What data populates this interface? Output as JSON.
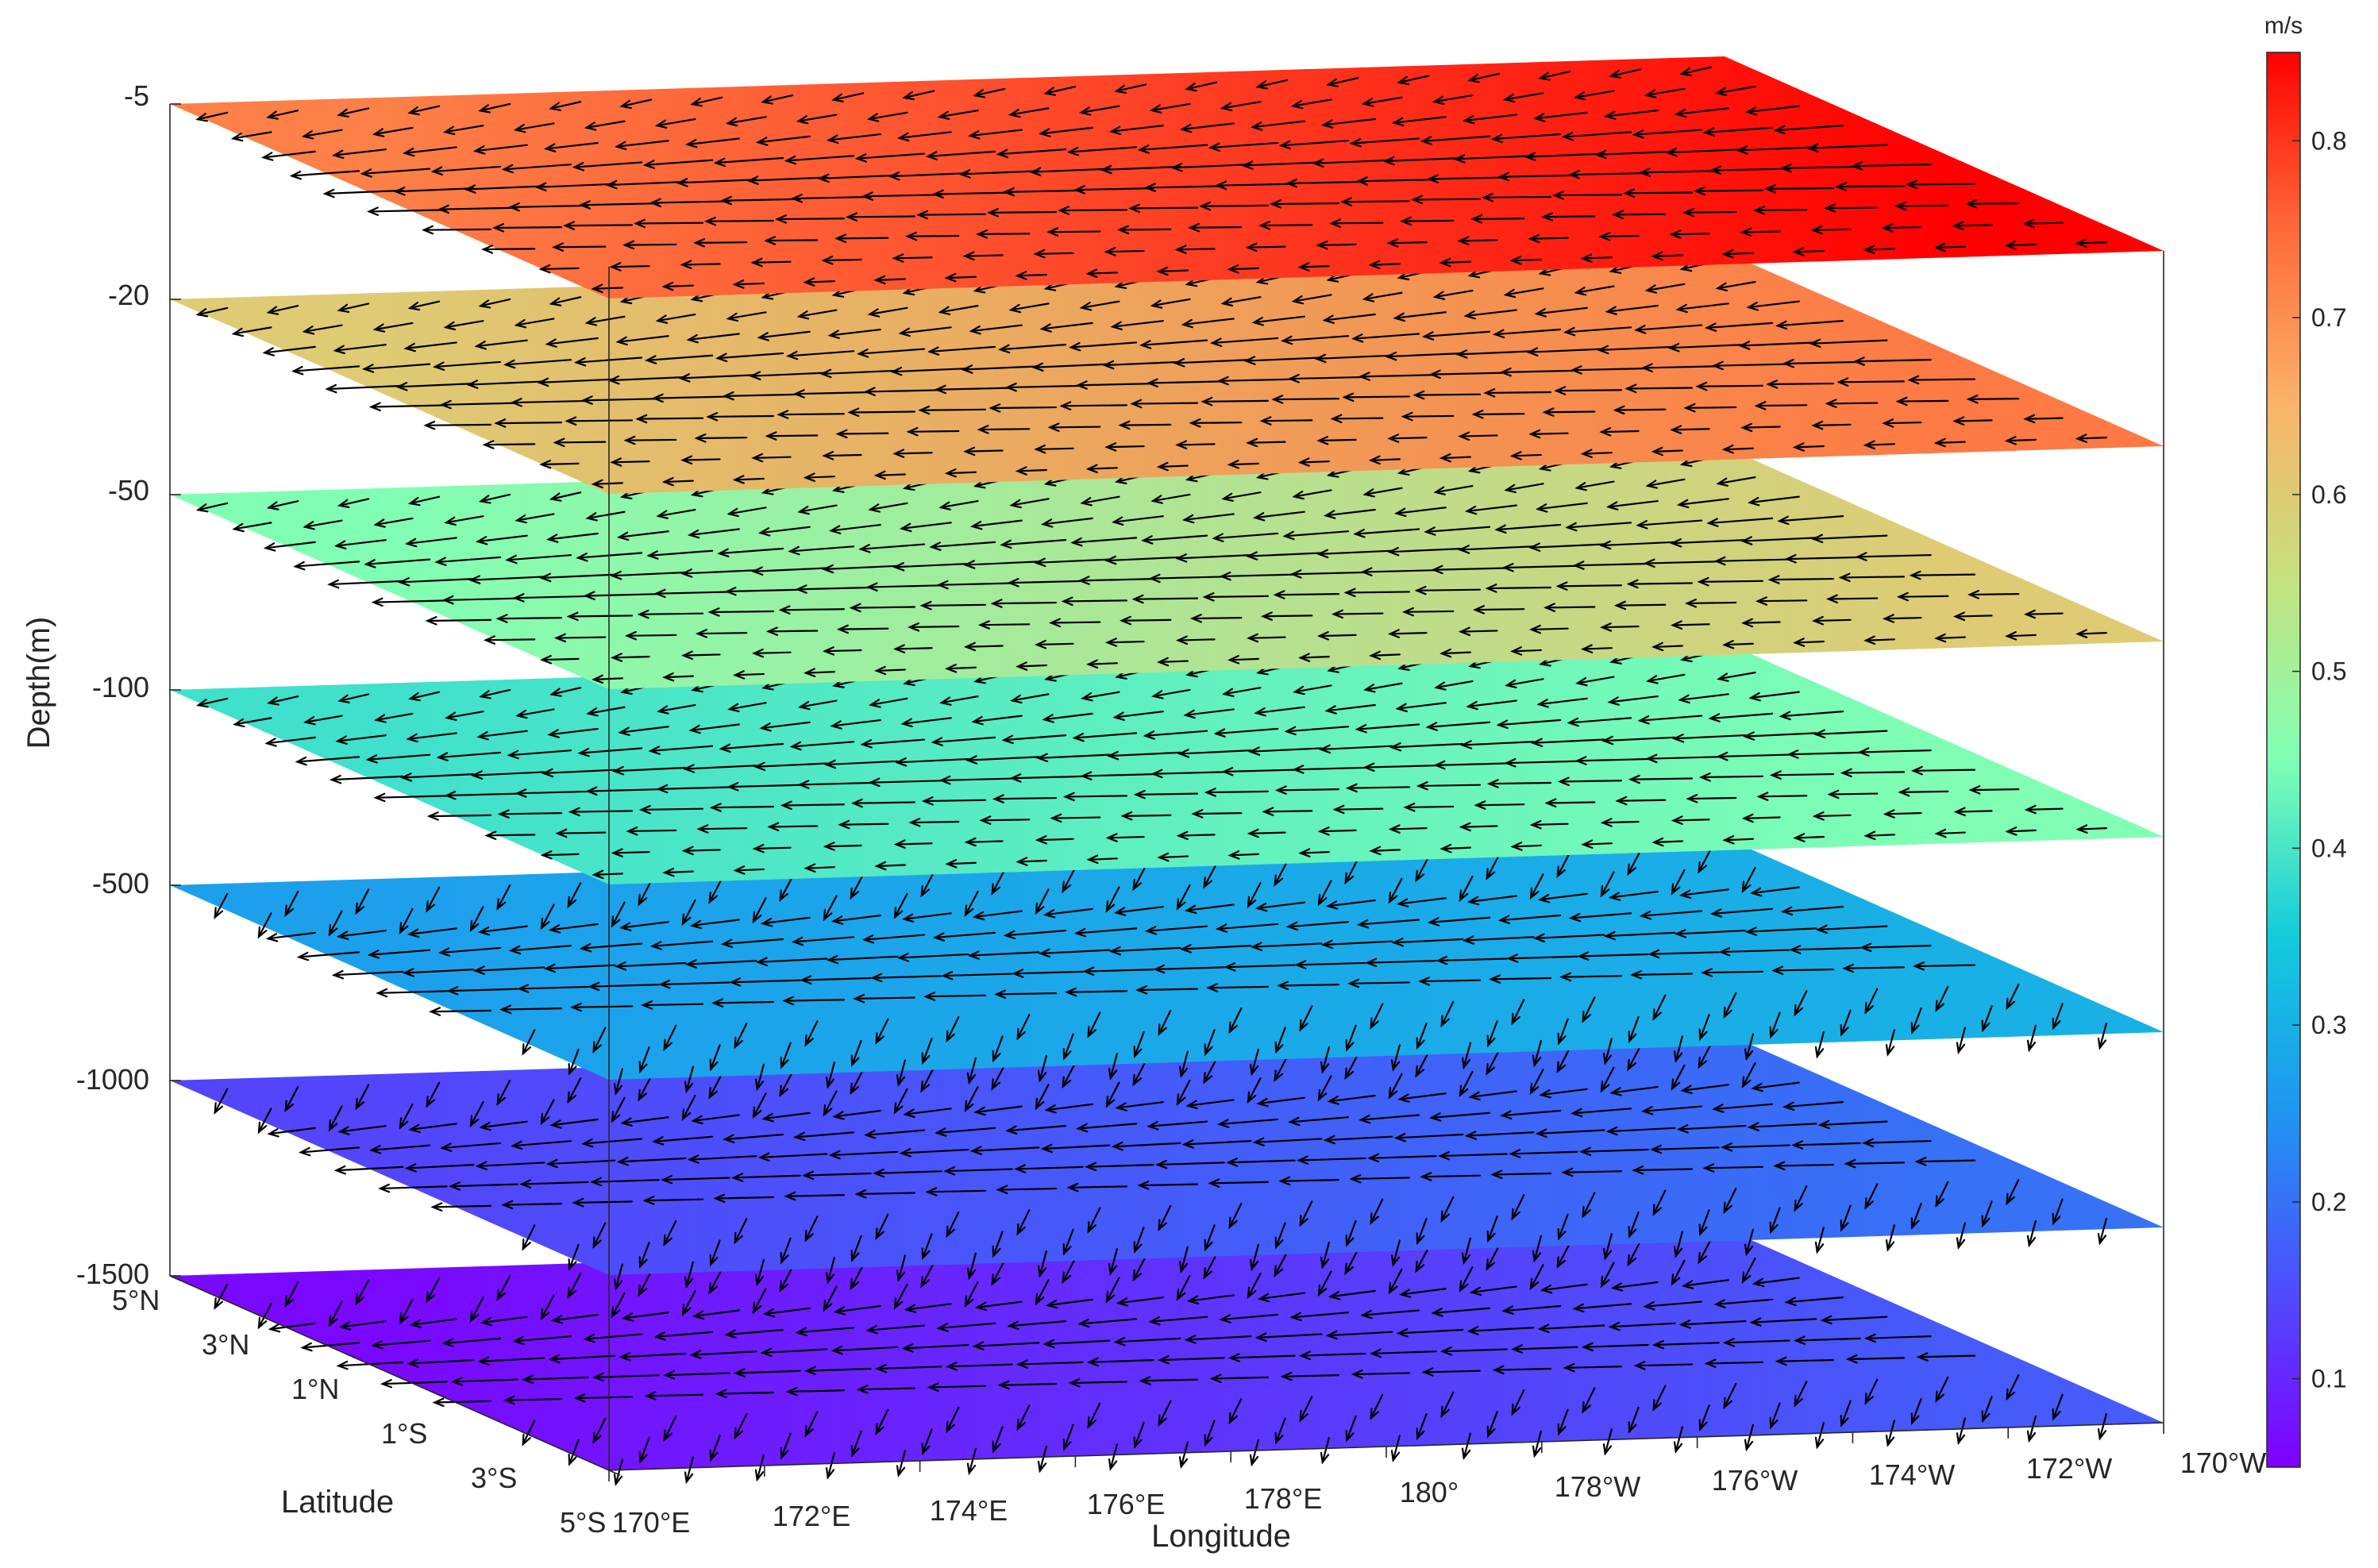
{
  "chart_data": {
    "type": "3d-stacked-vector-slices",
    "xlabel": "Longitude",
    "ylabel": "Latitude",
    "zlabel": "Depth(m)",
    "x_ticks": [
      "170°E",
      "172°E",
      "174°E",
      "176°E",
      "178°E",
      "180°",
      "178°W",
      "176°W",
      "174°W",
      "172°W",
      "170°W"
    ],
    "y_ticks": [
      "5°S",
      "3°S",
      "1°S",
      "1°N",
      "3°N",
      "5°N"
    ],
    "z_ticks": [
      "-5",
      "-20",
      "-50",
      "-100",
      "-500",
      "-1000",
      "-1500"
    ],
    "depths": [
      -5,
      -20,
      -50,
      -100,
      -500,
      -1000,
      -1500
    ],
    "colorbar": {
      "label": "m/s",
      "ticks": [
        "0.1",
        "0.2",
        "0.3",
        "0.4",
        "0.5",
        "0.6",
        "0.7",
        "0.8"
      ],
      "range": [
        0.05,
        0.85
      ],
      "colormap": "rainbow"
    },
    "slices": [
      {
        "depth": -5,
        "speed": [
          0.72,
          0.85
        ]
      },
      {
        "depth": -20,
        "speed": [
          0.6,
          0.73
        ]
      },
      {
        "depth": -50,
        "speed": [
          0.45,
          0.6
        ]
      },
      {
        "depth": -100,
        "speed": [
          0.39,
          0.45
        ]
      },
      {
        "depth": -500,
        "speed": [
          0.27,
          0.3
        ]
      },
      {
        "depth": -1000,
        "speed": [
          0.14,
          0.2
        ]
      },
      {
        "depth": -1500,
        "speed": [
          0.06,
          0.17
        ]
      }
    ]
  }
}
